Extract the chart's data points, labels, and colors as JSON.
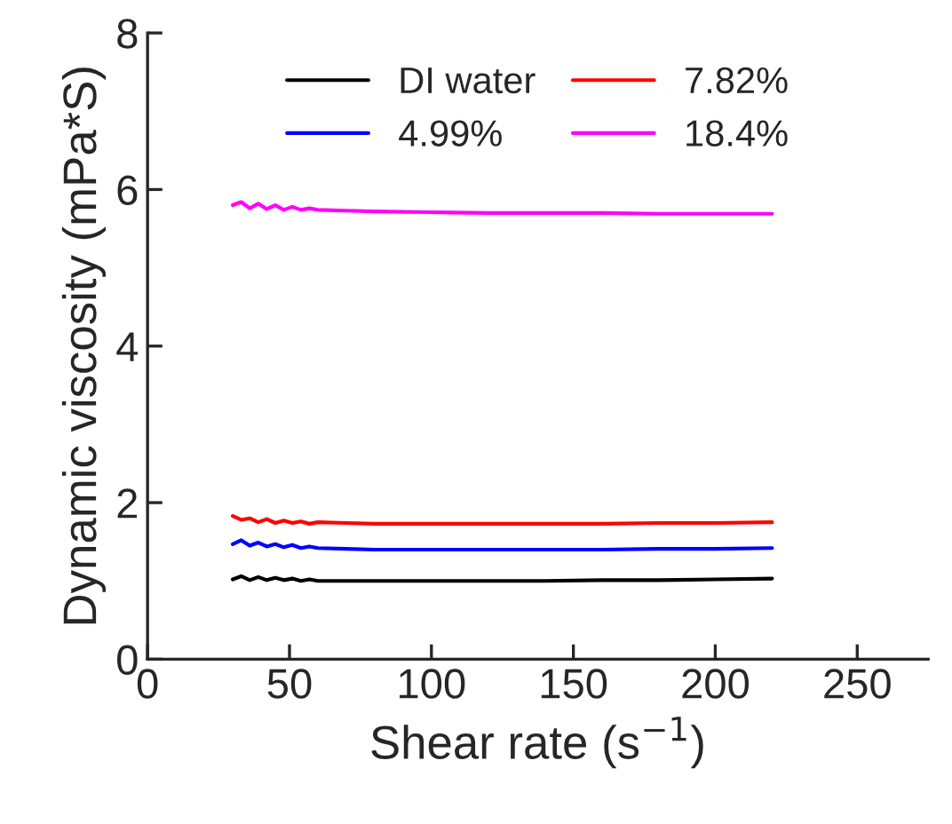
{
  "chart_data": {
    "type": "line",
    "xlabel": "Shear rate (s$^{−1}$)",
    "ylabel": "Dynamic viscosity (mPa*S)",
    "xlim": [
      0,
      275
    ],
    "ylim": [
      0,
      8
    ],
    "xticks": [
      0,
      50,
      100,
      150,
      200,
      250
    ],
    "yticks": [
      0,
      2,
      4,
      6,
      8
    ],
    "grid": false,
    "legend": "top",
    "marker": "none",
    "line_style": "solid",
    "x": [
      30,
      33,
      36,
      39,
      42,
      45,
      48,
      51,
      54,
      57,
      60,
      70,
      80,
      100,
      120,
      140,
      160,
      180,
      200,
      220
    ],
    "series": [
      {
        "name": "DI water",
        "color": "#000000",
        "values": [
          1.02,
          1.06,
          1.01,
          1.05,
          1.01,
          1.04,
          1.01,
          1.03,
          1.0,
          1.02,
          1.0,
          1.0,
          1.0,
          1.0,
          1.0,
          1.0,
          1.01,
          1.01,
          1.02,
          1.03
        ]
      },
      {
        "name": "4.99%",
        "color": "#0000ff",
        "values": [
          1.47,
          1.52,
          1.45,
          1.49,
          1.44,
          1.47,
          1.43,
          1.46,
          1.42,
          1.44,
          1.42,
          1.41,
          1.4,
          1.4,
          1.4,
          1.4,
          1.4,
          1.41,
          1.41,
          1.42
        ]
      },
      {
        "name": "7.82%",
        "color": "#ff0000",
        "values": [
          1.83,
          1.78,
          1.8,
          1.75,
          1.79,
          1.74,
          1.77,
          1.74,
          1.76,
          1.73,
          1.75,
          1.74,
          1.73,
          1.73,
          1.73,
          1.73,
          1.73,
          1.74,
          1.74,
          1.75
        ]
      },
      {
        "name": "18.4%",
        "color": "#ff00ff",
        "values": [
          5.8,
          5.84,
          5.76,
          5.82,
          5.75,
          5.8,
          5.74,
          5.78,
          5.74,
          5.76,
          5.74,
          5.73,
          5.72,
          5.71,
          5.7,
          5.7,
          5.7,
          5.69,
          5.69,
          5.69
        ]
      }
    ]
  }
}
